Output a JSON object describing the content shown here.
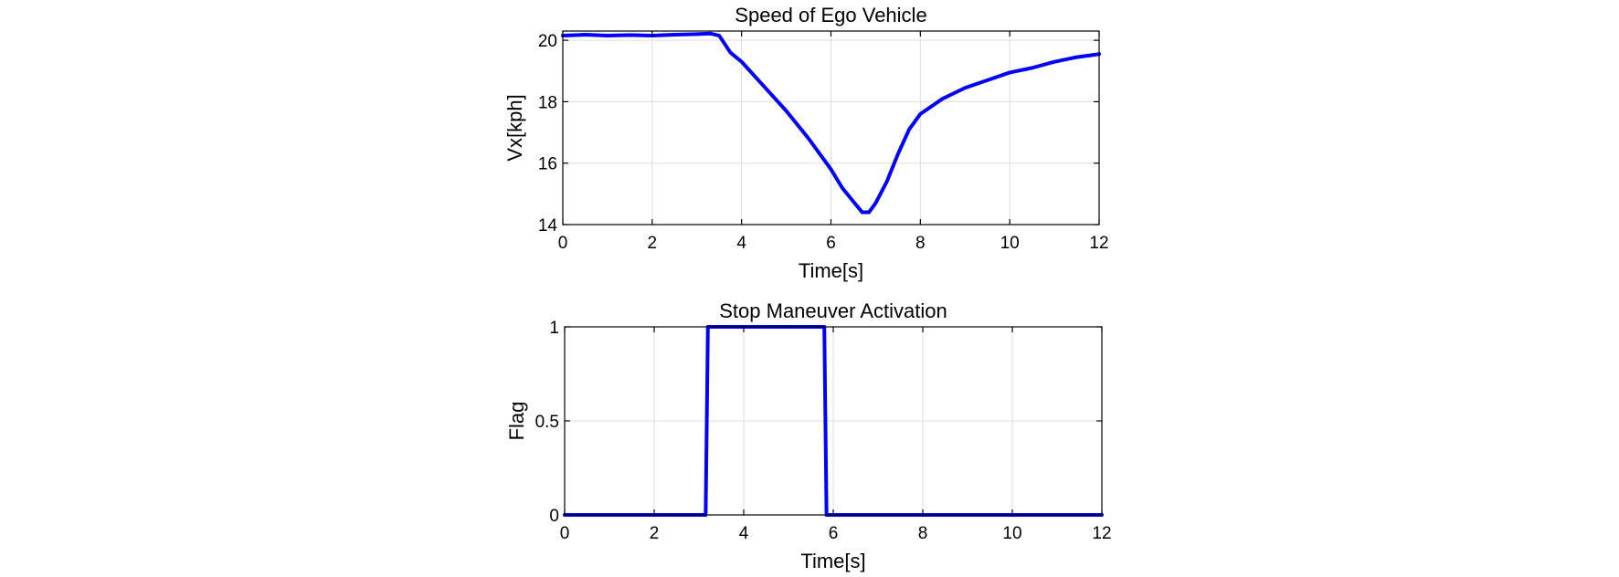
{
  "chart_data": [
    {
      "type": "line",
      "title": "Speed of Ego Vehicle",
      "xlabel": "Time[s]",
      "ylabel": "Vx[kph]",
      "xlim": [
        0,
        12
      ],
      "ylim": [
        14,
        20.3
      ],
      "xticks": [
        0,
        2,
        4,
        6,
        8,
        10,
        12
      ],
      "yticks": [
        14,
        16,
        18,
        20
      ],
      "grid": true,
      "series": [
        {
          "color": "#0000ff",
          "x": [
            0,
            0.5,
            1,
            1.5,
            2,
            2.5,
            3,
            3.3,
            3.5,
            3.75,
            4,
            4.5,
            5,
            5.5,
            6,
            6.25,
            6.5,
            6.7,
            6.85,
            7,
            7.25,
            7.5,
            7.75,
            8,
            8.5,
            9,
            9.5,
            10,
            10.5,
            11,
            11.5,
            12
          ],
          "y": [
            20.15,
            20.18,
            20.15,
            20.17,
            20.15,
            20.18,
            20.2,
            20.22,
            20.15,
            19.6,
            19.3,
            18.5,
            17.7,
            16.8,
            15.8,
            15.2,
            14.75,
            14.4,
            14.4,
            14.7,
            15.4,
            16.3,
            17.1,
            17.6,
            18.1,
            18.45,
            18.7,
            18.95,
            19.1,
            19.3,
            19.45,
            19.55
          ]
        }
      ]
    },
    {
      "type": "line",
      "title": "Stop Maneuver Activation",
      "xlabel": "Time[s]",
      "ylabel": "Flag",
      "xlim": [
        0,
        12
      ],
      "ylim": [
        0,
        1
      ],
      "xticks": [
        0,
        2,
        4,
        6,
        8,
        10,
        12
      ],
      "yticks": [
        0,
        0.5,
        1
      ],
      "grid": true,
      "series": [
        {
          "color": "#0000ff",
          "x": [
            0,
            3.15,
            3.2,
            5.8,
            5.85,
            12
          ],
          "y": [
            0,
            0,
            1,
            1,
            0,
            0
          ]
        }
      ]
    }
  ]
}
